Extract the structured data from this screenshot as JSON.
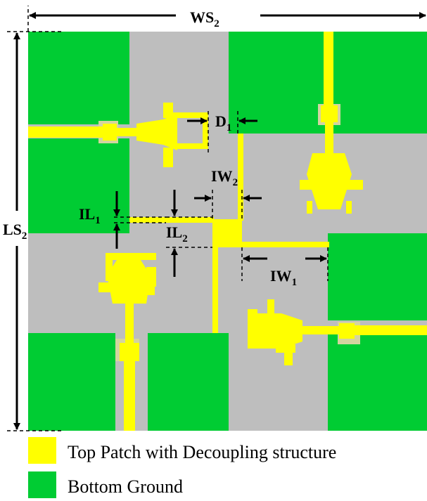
{
  "labels": {
    "ws2": {
      "main": "WS",
      "sub": "2"
    },
    "ls2": {
      "main": "LS",
      "sub": "2"
    },
    "d1": {
      "main": "D",
      "sub": "1"
    },
    "iw2": {
      "main": "IW",
      "sub": "2"
    },
    "iw1": {
      "main": "IW",
      "sub": "1"
    },
    "il1": {
      "main": "IL",
      "sub": "1"
    },
    "il2": {
      "main": "IL",
      "sub": "2"
    }
  },
  "legend": [
    {
      "label": "Top Patch with Decoupling structure",
      "color": "#ffff00"
    },
    {
      "label": "Bottom Ground",
      "color": "#00cc33"
    }
  ],
  "colors": {
    "substrate": "#bebebe",
    "ground": "#00cc33",
    "patch": "#ffff00",
    "feed_pad": "#e8e862",
    "annotation": "#000000"
  }
}
